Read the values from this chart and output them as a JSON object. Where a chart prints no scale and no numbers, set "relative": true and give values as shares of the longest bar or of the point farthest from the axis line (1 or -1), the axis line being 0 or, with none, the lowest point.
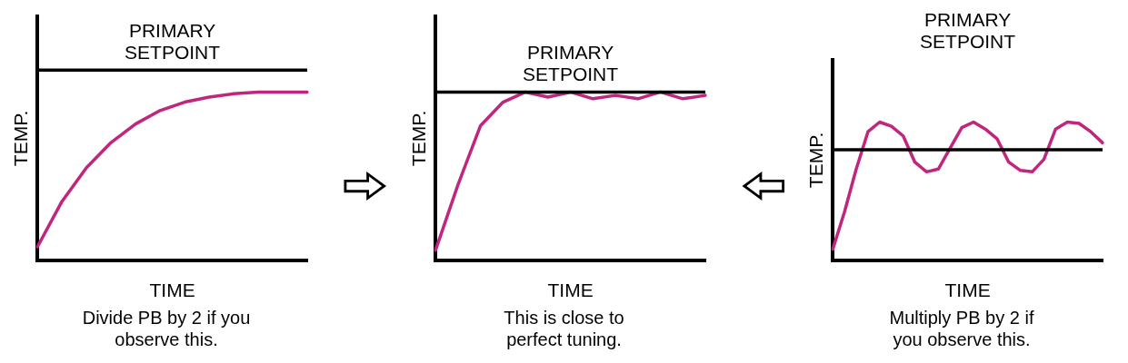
{
  "chart_data": [
    {
      "type": "line",
      "relative": true,
      "xlabel": "TIME",
      "ylabel": "TEMP.",
      "categories": [
        null,
        null,
        null,
        null,
        null,
        null,
        null,
        null,
        null,
        null,
        null,
        null
      ],
      "series": [
        {
          "color": "#c0267e",
          "values": [
            0.08,
            0.35,
            0.55,
            0.7,
            0.81,
            0.89,
            0.94,
            0.97,
            0.99,
            1,
            1,
            1
          ]
        }
      ],
      "ref_lines": [
        {
          "axis": "y",
          "value": 1.13,
          "label": "PRIMARY SETPOINT",
          "color": "#000000"
        }
      ],
      "annotations": [
        "Divide PB by 2 if you observe this."
      ],
      "marker": "none",
      "grid": false,
      "legend": false
    },
    {
      "type": "line",
      "relative": true,
      "xlabel": "TIME",
      "ylabel": "TEMP.",
      "categories": [
        null,
        null,
        null,
        null,
        null,
        null,
        null,
        null,
        null,
        null,
        null,
        null,
        null
      ],
      "series": [
        {
          "color": "#c0267e",
          "values": [
            0.06,
            0.45,
            0.8,
            0.94,
            1,
            0.97,
            1,
            0.96,
            0.98,
            0.96,
            1,
            0.96,
            0.98
          ]
        }
      ],
      "ref_lines": [
        {
          "axis": "y",
          "value": 1,
          "label": "PRIMARY SETPOINT",
          "color": "#000000"
        }
      ],
      "annotations": [
        "This is close to perfect tuning."
      ],
      "marker": "none",
      "grid": false,
      "legend": false
    },
    {
      "type": "line",
      "relative": true,
      "xlabel": "TIME",
      "ylabel": "TEMP.",
      "categories": [
        null,
        null,
        null,
        null,
        null,
        null,
        null,
        null,
        null,
        null,
        null,
        null,
        null,
        null,
        null,
        null,
        null,
        null,
        null,
        null,
        null,
        null,
        null,
        null
      ],
      "series": [
        {
          "color": "#c0267e",
          "values": [
            0.08,
            0.35,
            0.66,
            0.93,
            1,
            0.97,
            0.9,
            0.71,
            0.64,
            0.66,
            0.81,
            0.96,
            1,
            0.95,
            0.88,
            0.71,
            0.65,
            0.64,
            0.73,
            0.95,
            1,
            0.99,
            0.93,
            0.85
          ]
        }
      ],
      "ref_lines": [
        {
          "axis": "y",
          "value": 0.8,
          "label": "PRIMARY SETPOINT",
          "color": "#000000"
        }
      ],
      "annotations": [
        "Multiply PB by 2 if you observe this."
      ],
      "marker": "none",
      "grid": false,
      "legend": false
    }
  ]
}
